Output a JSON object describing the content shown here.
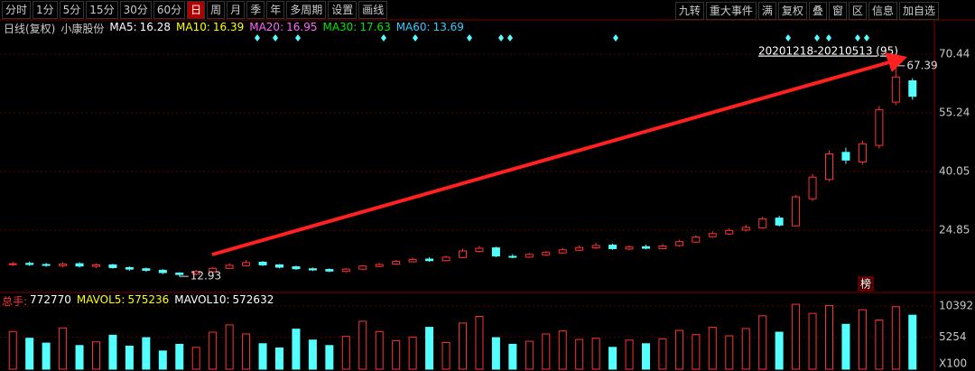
{
  "toolbar": {
    "left": [
      "分时",
      "1分",
      "5分",
      "15分",
      "30分",
      "60分",
      "日",
      "周",
      "月",
      "季",
      "年",
      "多周期",
      "设置",
      "画线"
    ],
    "active": "日",
    "right": [
      "九转",
      "重大事件",
      "满",
      "复权",
      "叠",
      "窗",
      "区",
      "信息",
      "加自选"
    ]
  },
  "chart_data": {
    "type": "candlestick",
    "period": "日线(复权)",
    "stock": "小康股份",
    "ma": [
      {
        "name": "MA5:",
        "value": 16.28,
        "color": "#ffffff"
      },
      {
        "name": "MA10:",
        "value": 16.39,
        "color": "#ffff00"
      },
      {
        "name": "MA20:",
        "value": 16.95,
        "color": "#ff66ff"
      },
      {
        "name": "MA30:",
        "value": 17.63,
        "color": "#00e600"
      },
      {
        "name": "MA60:",
        "value": 13.69,
        "color": "#33ccff"
      }
    ],
    "range_label": "20201218-20210513 (95)",
    "up_color": "#ff3232",
    "down_color": "#54ffff",
    "ylim": [
      9.7,
      77.4
    ],
    "yticks": [
      24.85,
      40.05,
      55.24,
      70.44
    ],
    "open": [
      16.0,
      16.3,
      16.0,
      15.7,
      16.2,
      15.5,
      15.9,
      15.2,
      14.9,
      14.5,
      13.8,
      13.5,
      14.1,
      15.0,
      15.7,
      16.6,
      15.9,
      15.4,
      14.9,
      14.7,
      14.2,
      14.8,
      15.5,
      16.1,
      16.7,
      17.4,
      17.0,
      17.8,
      19.4,
      20.3,
      18.1,
      17.9,
      18.5,
      19.0,
      19.7,
      20.3,
      21.0,
      20.0,
      20.6,
      20.1,
      20.9,
      21.8,
      23.2,
      23.9,
      24.9,
      25.5,
      28.0,
      26.0,
      33.0,
      38.0,
      45.0,
      42.5,
      46.8,
      58.0,
      63.5
    ],
    "high": [
      16.7,
      16.8,
      16.4,
      16.6,
      16.6,
      16.3,
      16.2,
      15.5,
      15.2,
      14.8,
      14.0,
      14.6,
      15.4,
      16.3,
      17.2,
      16.9,
      16.1,
      15.7,
      15.2,
      15.0,
      15.1,
      15.9,
      16.4,
      17.2,
      17.8,
      17.9,
      18.3,
      20.1,
      20.8,
      20.6,
      18.7,
      19.0,
      19.5,
      20.3,
      21.0,
      21.6,
      21.4,
      21.0,
      21.1,
      21.3,
      22.4,
      23.6,
      24.6,
      25.4,
      26.3,
      28.4,
      28.6,
      34.0,
      39.4,
      45.5,
      46.2,
      48.0,
      57.0,
      67.39,
      64.2
    ],
    "low": [
      15.6,
      15.6,
      15.4,
      15.3,
      15.2,
      15.1,
      14.9,
      14.4,
      14.1,
      13.5,
      12.93,
      13.2,
      13.9,
      14.8,
      15.5,
      15.6,
      15.0,
      14.6,
      14.3,
      14.0,
      14.0,
      14.6,
      15.3,
      15.9,
      16.5,
      16.7,
      16.8,
      17.6,
      19.1,
      17.9,
      17.6,
      17.7,
      18.2,
      18.8,
      19.5,
      20.0,
      19.8,
      19.7,
      19.9,
      19.9,
      20.6,
      21.6,
      22.9,
      23.6,
      24.5,
      25.3,
      25.8,
      25.8,
      32.4,
      37.5,
      42.0,
      41.8,
      46.0,
      57.2,
      58.6
    ],
    "close": [
      16.2,
      16.0,
      15.8,
      16.1,
      15.6,
      15.9,
      15.2,
      14.8,
      14.5,
      13.9,
      13.4,
      14.2,
      15.0,
      15.8,
      16.5,
      15.9,
      15.3,
      14.9,
      14.6,
      14.3,
      14.8,
      15.6,
      16.0,
      16.8,
      17.3,
      17.0,
      17.9,
      19.5,
      20.2,
      18.2,
      18.0,
      18.6,
      19.1,
      19.8,
      20.4,
      20.9,
      20.1,
      20.5,
      20.2,
      20.8,
      21.9,
      23.1,
      24.0,
      24.8,
      25.6,
      27.8,
      26.2,
      33.5,
      38.6,
      44.6,
      43.0,
      47.2,
      56.0,
      64.5,
      59.5
    ],
    "volume_legend": [
      {
        "name": "总手:",
        "value": 772770,
        "color": "#ffffff"
      },
      {
        "name": "MAVOL5:",
        "value": 575236,
        "color": "#ffff00"
      },
      {
        "name": "MAVOL10:",
        "value": 572632,
        "color": "#ffffff"
      }
    ],
    "volume": [
      6200,
      5100,
      4300,
      6800,
      3900,
      4500,
      5600,
      3800,
      5200,
      3000,
      4100,
      3600,
      6100,
      7300,
      5800,
      4200,
      3500,
      6600,
      4800,
      3900,
      5400,
      7900,
      6200,
      4700,
      5300,
      6900,
      4400,
      7600,
      8700,
      5200,
      4100,
      4600,
      5800,
      6300,
      4900,
      5100,
      3600,
      4800,
      4200,
      5000,
      6400,
      5700,
      6900,
      5500,
      6700,
      8800,
      6100,
      10700,
      9200,
      10500,
      7400,
      9800,
      8100,
      10300,
      8900
    ],
    "vlim": [
      0,
      11750
    ],
    "vticks": [
      5254,
      10392
    ],
    "vunit": "X100",
    "badge": "榜"
  }
}
